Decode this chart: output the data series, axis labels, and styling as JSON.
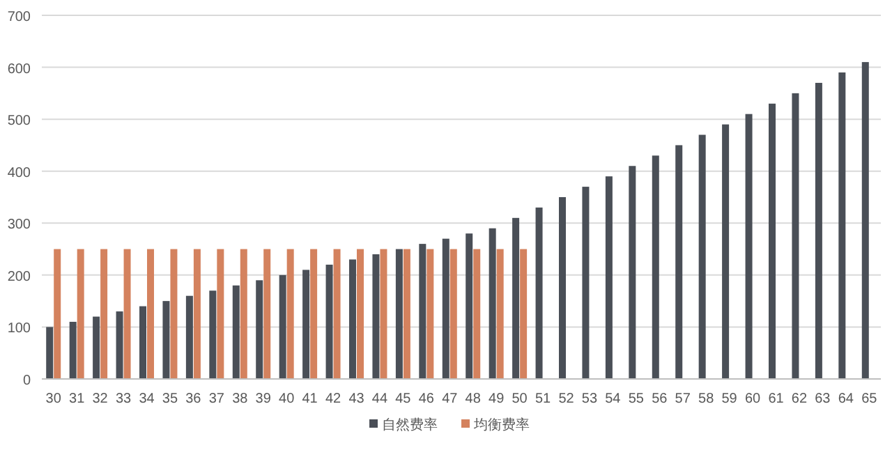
{
  "chart_data": {
    "type": "bar",
    "categories": [
      "30",
      "31",
      "32",
      "33",
      "34",
      "35",
      "36",
      "37",
      "38",
      "39",
      "40",
      "41",
      "42",
      "43",
      "44",
      "45",
      "46",
      "47",
      "48",
      "49",
      "50",
      "51",
      "52",
      "53",
      "54",
      "55",
      "56",
      "57",
      "58",
      "59",
      "60",
      "61",
      "62",
      "63",
      "64",
      "65"
    ],
    "series": [
      {
        "name": "自然费率",
        "color": "#4a4f57",
        "values": [
          100,
          110,
          120,
          130,
          140,
          150,
          160,
          170,
          180,
          190,
          200,
          210,
          220,
          230,
          240,
          250,
          260,
          270,
          280,
          290,
          310,
          330,
          350,
          370,
          390,
          410,
          430,
          450,
          470,
          490,
          510,
          530,
          550,
          570,
          590,
          610
        ]
      },
      {
        "name": "均衡费率",
        "color": "#d4825e",
        "values": [
          250,
          250,
          250,
          250,
          250,
          250,
          250,
          250,
          250,
          250,
          250,
          250,
          250,
          250,
          250,
          250,
          250,
          250,
          250,
          250,
          250,
          null,
          null,
          null,
          null,
          null,
          null,
          null,
          null,
          null,
          null,
          null,
          null,
          null,
          null,
          null
        ]
      }
    ],
    "ylim": [
      0,
      700
    ],
    "yticks": [
      0,
      100,
      200,
      300,
      400,
      500,
      600,
      700
    ],
    "grid": "y",
    "legend": "bottom"
  }
}
